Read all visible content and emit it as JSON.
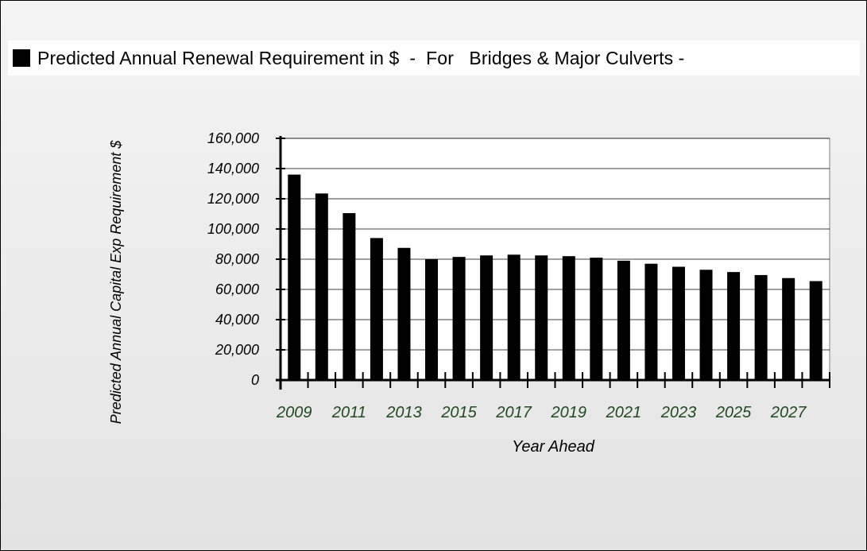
{
  "chart_data": {
    "type": "bar",
    "title": "Predicted Annual Renewal Requirement in $  -  For   Bridges & Major Culverts -",
    "legend": "top",
    "xlabel": "Year Ahead",
    "ylabel": "Predicted Annual Capital Exp Requirement $",
    "ylim": [
      0,
      160000
    ],
    "y_ticks": [
      "0",
      "20,000",
      "40,000",
      "60,000",
      "80,000",
      "100,000",
      "120,000",
      "140,000",
      "160,000"
    ],
    "grid": "horizontal",
    "categories": [
      "2009",
      "2010",
      "2011",
      "2012",
      "2013",
      "2014",
      "2015",
      "2016",
      "2017",
      "2018",
      "2019",
      "2020",
      "2021",
      "2022",
      "2023",
      "2024",
      "2025",
      "2026",
      "2027",
      "2028"
    ],
    "x_tick_labels": [
      "2009",
      "2011",
      "2013",
      "2015",
      "2017",
      "2019",
      "2021",
      "2023",
      "2025",
      "2027"
    ],
    "series": [
      {
        "name": "Predicted Annual Renewal Requirement in $  -  For   Bridges & Major Culverts -",
        "color": "#000000",
        "values": [
          136000,
          123500,
          110500,
          94000,
          87500,
          80000,
          81500,
          82500,
          83000,
          82500,
          82000,
          81000,
          79000,
          77000,
          75000,
          73000,
          71500,
          69500,
          67500,
          65500
        ]
      }
    ],
    "colors": {
      "bars": "#000000",
      "x_tick_text": "#1f4a1f",
      "background": "#eeeeee"
    }
  }
}
